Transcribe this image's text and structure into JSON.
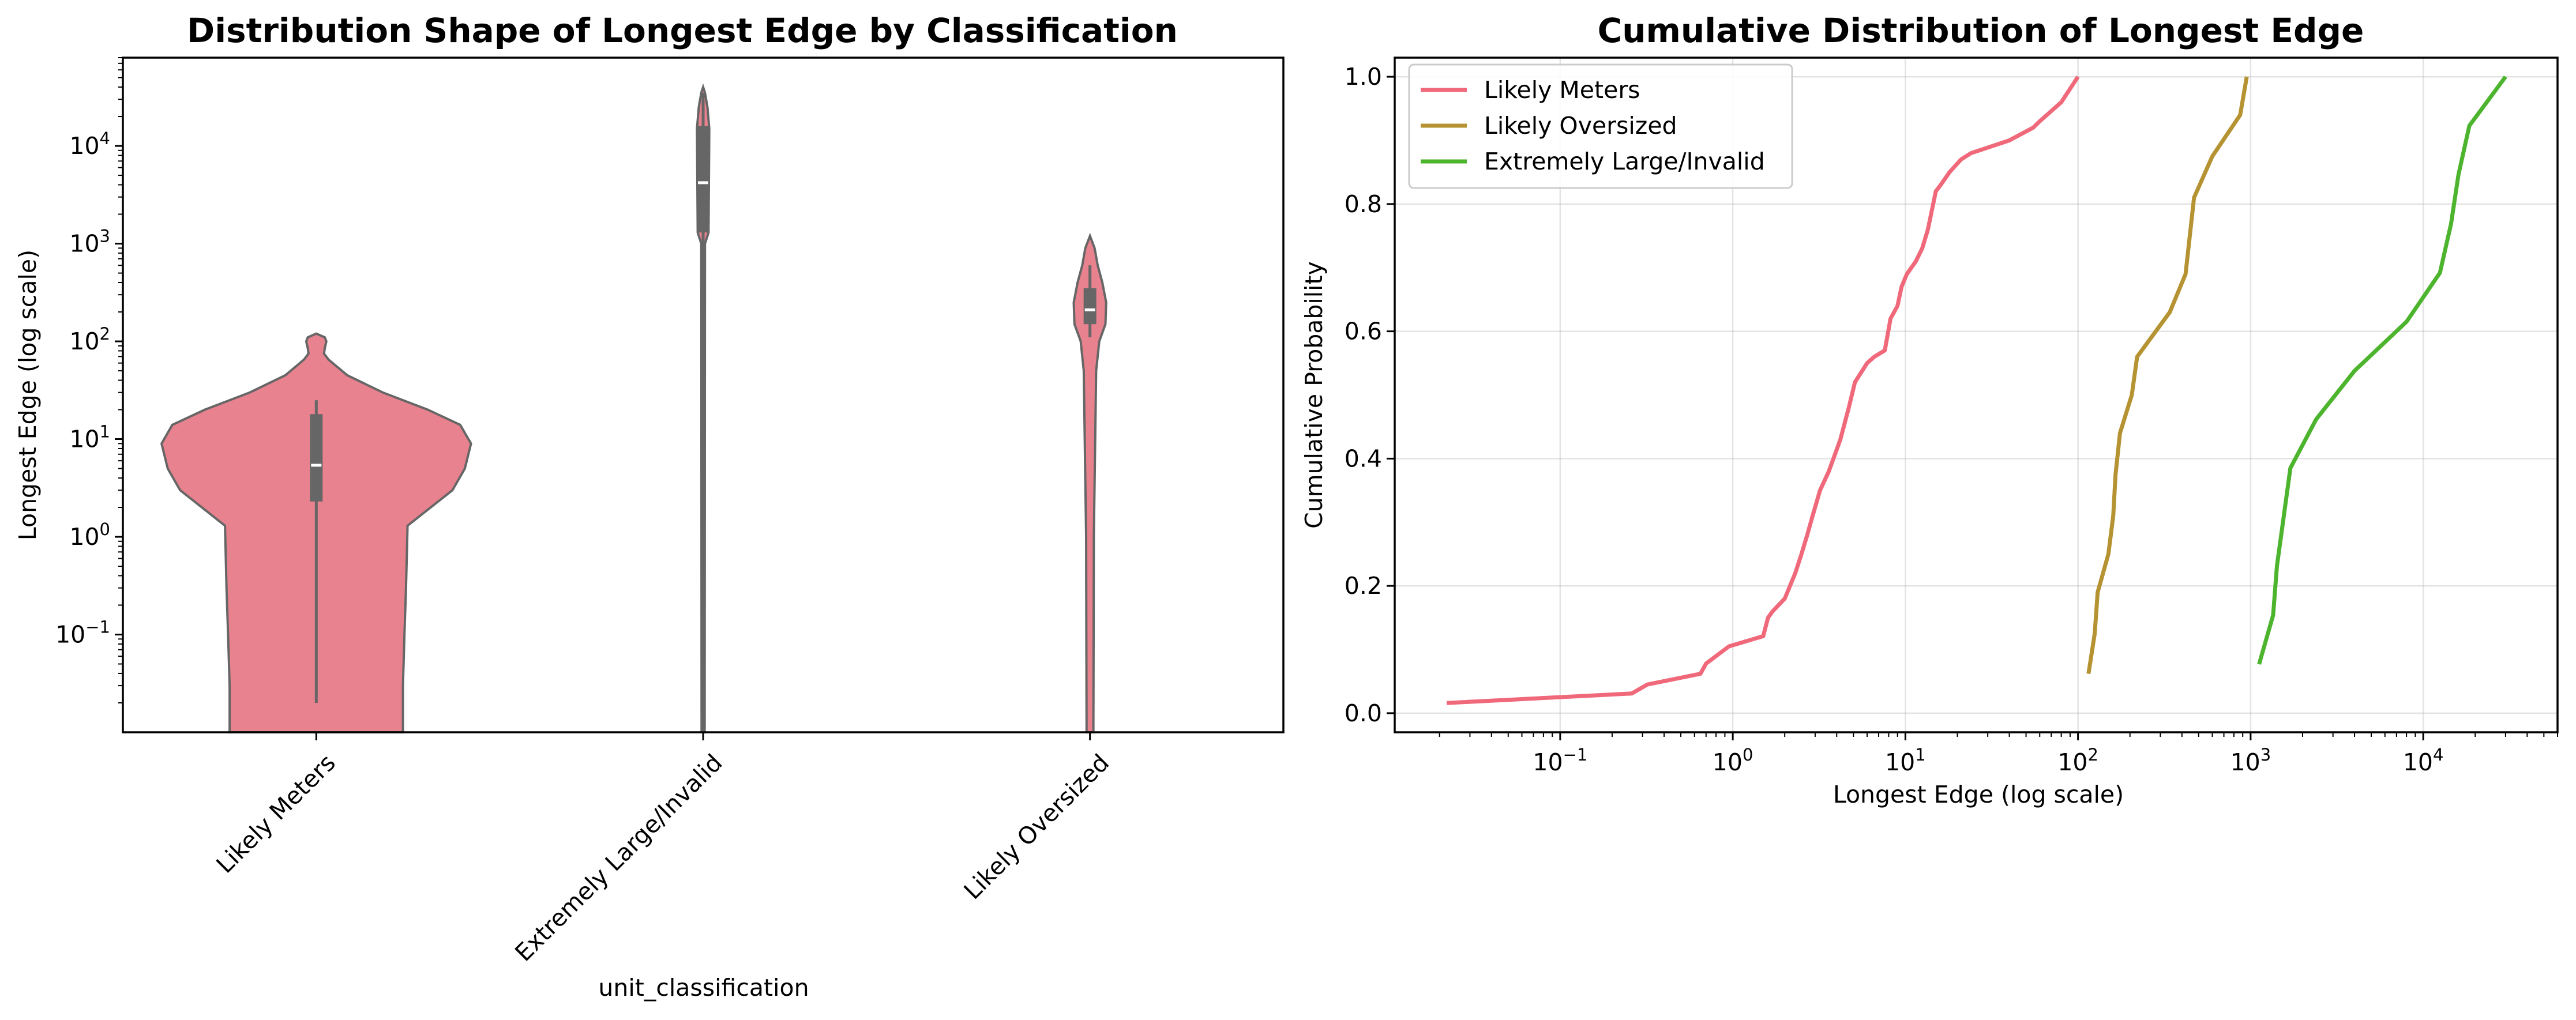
{
  "chart_data": [
    {
      "type": "violin",
      "title": "Distribution Shape of Longest Edge by Classification",
      "xlabel": "unit_classification",
      "ylabel": "Longest Edge (log scale)",
      "yscale": "log",
      "ylim": [
        0.01,
        80000
      ],
      "yticks": [
        {
          "value": 0.1,
          "base": "10",
          "exp": "−1"
        },
        {
          "value": 1,
          "base": "10",
          "exp": "0"
        },
        {
          "value": 10,
          "base": "10",
          "exp": "1"
        },
        {
          "value": 100,
          "base": "10",
          "exp": "2"
        },
        {
          "value": 1000,
          "base": "10",
          "exp": "3"
        },
        {
          "value": 10000,
          "base": "10",
          "exp": "4"
        }
      ],
      "categories": [
        "Likely Meters",
        "Extremely Large/Invalid",
        "Likely Oversized"
      ],
      "violin_color": "#e8828f",
      "edge_color": "#666666",
      "violins": [
        {
          "category": "Likely Meters",
          "density": [
            [
              0.01,
              0.56
            ],
            [
              0.02,
              0.56
            ],
            [
              0.03,
              0.56
            ],
            [
              0.1,
              0.57
            ],
            [
              0.3,
              0.58
            ],
            [
              1.3,
              0.59
            ],
            [
              3,
              0.88
            ],
            [
              5,
              0.96
            ],
            [
              9,
              1.0
            ],
            [
              14,
              0.93
            ],
            [
              20,
              0.72
            ],
            [
              30,
              0.43
            ],
            [
              45,
              0.2
            ],
            [
              65,
              0.08
            ],
            [
              75,
              0.05
            ],
            [
              85,
              0.055
            ],
            [
              100,
              0.065
            ],
            [
              110,
              0.055
            ],
            [
              120,
              0.0
            ]
          ],
          "whisker": [
            0.02,
            25
          ],
          "quartiles": [
            2.3,
            18
          ],
          "median": 5.4
        },
        {
          "category": "Extremely Large/Invalid",
          "density": [
            [
              0.01,
              0.01
            ],
            [
              1000,
              0.012
            ],
            [
              1300,
              0.035
            ],
            [
              15000,
              0.04
            ],
            [
              25000,
              0.028
            ],
            [
              35000,
              0.012
            ],
            [
              40000,
              0.0
            ]
          ],
          "whisker": [
            0.01,
            35000
          ],
          "quartiles": [
            1300,
            16000
          ],
          "median": 4200
        },
        {
          "category": "Likely Oversized",
          "density": [
            [
              0.01,
              0.022
            ],
            [
              1,
              0.025
            ],
            [
              50,
              0.04
            ],
            [
              100,
              0.06
            ],
            [
              150,
              0.1
            ],
            [
              250,
              0.105
            ],
            [
              400,
              0.08
            ],
            [
              600,
              0.05
            ],
            [
              900,
              0.03
            ],
            [
              1200,
              0.0
            ]
          ],
          "whisker": [
            110,
            600
          ],
          "quartiles": [
            150,
            350
          ],
          "median": 210
        }
      ]
    },
    {
      "type": "line",
      "title": "Cumulative Distribution of Longest Edge",
      "xlabel": "Longest Edge (log scale)",
      "ylabel": "Cumulative Probability",
      "xscale": "log",
      "xlim": [
        0.011,
        60000
      ],
      "ylim": [
        -0.03,
        1.03
      ],
      "xticks": [
        {
          "value": 0.1,
          "base": "10",
          "exp": "−1"
        },
        {
          "value": 1,
          "base": "10",
          "exp": "0"
        },
        {
          "value": 10,
          "base": "10",
          "exp": "1"
        },
        {
          "value": 100,
          "base": "10",
          "exp": "2"
        },
        {
          "value": 1000,
          "base": "10",
          "exp": "3"
        },
        {
          "value": 10000,
          "base": "10",
          "exp": "4"
        }
      ],
      "yticks": [
        "0.0",
        "0.2",
        "0.4",
        "0.6",
        "0.8",
        "1.0"
      ],
      "grid": true,
      "legend_position": "upper-left",
      "series": [
        {
          "name": "Likely Meters",
          "color": "#f0697a",
          "points": [
            [
              0.022,
              0.016
            ],
            [
              0.26,
              0.031
            ],
            [
              0.32,
              0.045
            ],
            [
              0.65,
              0.062
            ],
            [
              0.7,
              0.078
            ],
            [
              0.95,
              0.105
            ],
            [
              1.5,
              0.121
            ],
            [
              1.6,
              0.15
            ],
            [
              1.7,
              0.16
            ],
            [
              2.0,
              0.18
            ],
            [
              2.3,
              0.22
            ],
            [
              2.5,
              0.25
            ],
            [
              2.7,
              0.28
            ],
            [
              2.9,
              0.31
            ],
            [
              3.2,
              0.35
            ],
            [
              3.6,
              0.38
            ],
            [
              4.2,
              0.43
            ],
            [
              4.7,
              0.48
            ],
            [
              5.1,
              0.52
            ],
            [
              6.0,
              0.55
            ],
            [
              6.6,
              0.56
            ],
            [
              7.6,
              0.57
            ],
            [
              8.2,
              0.62
            ],
            [
              9.0,
              0.64
            ],
            [
              9.5,
              0.67
            ],
            [
              10.2,
              0.69
            ],
            [
              11.5,
              0.71
            ],
            [
              12.5,
              0.73
            ],
            [
              13.5,
              0.76
            ],
            [
              15.0,
              0.82
            ],
            [
              16.0,
              0.83
            ],
            [
              18.0,
              0.85
            ],
            [
              21.0,
              0.87
            ],
            [
              24.0,
              0.88
            ],
            [
              40.0,
              0.9
            ],
            [
              55.0,
              0.92
            ],
            [
              60.0,
              0.93
            ],
            [
              80.0,
              0.96
            ],
            [
              100.0,
              1.0
            ]
          ]
        },
        {
          "name": "Likely Oversized",
          "color": "#b69332",
          "points": [
            [
              115,
              0.062
            ],
            [
              125,
              0.125
            ],
            [
              130,
              0.19
            ],
            [
              150,
              0.25
            ],
            [
              160,
              0.31
            ],
            [
              165,
              0.375
            ],
            [
              175,
              0.44
            ],
            [
              205,
              0.5
            ],
            [
              220,
              0.56
            ],
            [
              340,
              0.63
            ],
            [
              420,
              0.69
            ],
            [
              470,
              0.81
            ],
            [
              600,
              0.875
            ],
            [
              870,
              0.94
            ],
            [
              950,
              1.0
            ]
          ]
        },
        {
          "name": "Extremely Large/Invalid",
          "color": "#4db42e",
          "points": [
            [
              1120,
              0.077
            ],
            [
              1350,
              0.154
            ],
            [
              1420,
              0.231
            ],
            [
              1700,
              0.385
            ],
            [
              2400,
              0.462
            ],
            [
              4000,
              0.538
            ],
            [
              8000,
              0.615
            ],
            [
              12500,
              0.692
            ],
            [
              14500,
              0.769
            ],
            [
              16000,
              0.846
            ],
            [
              18500,
              0.923
            ],
            [
              30000,
              1.0
            ]
          ]
        }
      ]
    }
  ]
}
